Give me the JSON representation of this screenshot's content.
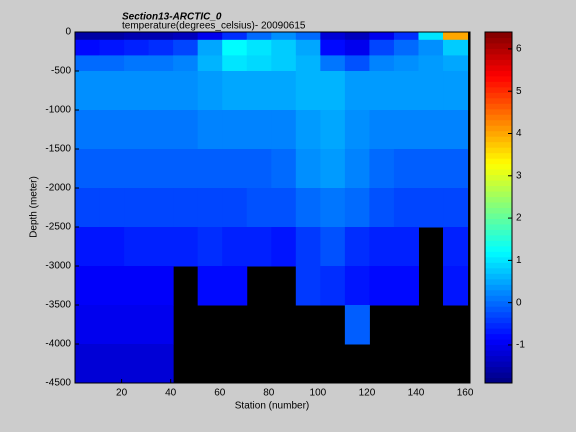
{
  "chart_data": {
    "type": "heatmap",
    "title": "Section13-ARCTIC_0",
    "subtitle": "temperature(degrees_celsius)- 20090615",
    "x_label": "Station (number)",
    "y_label": "Depth (meter)",
    "colormap": "jet",
    "x_edges": [
      1,
      11,
      21,
      31,
      41,
      51,
      61,
      71,
      81,
      91,
      101,
      111,
      121,
      131,
      141,
      151,
      161
    ],
    "y_edges": [
      0,
      -100,
      -300,
      -500,
      -1000,
      -1500,
      -2000,
      -2500,
      -3000,
      -3500,
      -4000,
      -4500
    ],
    "values": [
      [
        -1.6,
        -1.6,
        -1.5,
        -1.5,
        -1.4,
        -1.0,
        -0.5,
        0.0,
        0.3,
        0.0,
        -1.2,
        -1.4,
        -1.0,
        -0.5,
        1.0,
        4.0
      ],
      [
        -0.8,
        -0.7,
        -0.6,
        -0.5,
        -0.3,
        0.5,
        1.2,
        1.0,
        0.8,
        0.5,
        -0.8,
        -1.0,
        -0.3,
        0.0,
        0.3,
        0.8
      ],
      [
        0.0,
        0.0,
        0.1,
        0.1,
        0.2,
        0.6,
        1.0,
        0.9,
        0.8,
        0.6,
        0.1,
        -0.2,
        0.2,
        0.3,
        0.4,
        0.5
      ],
      [
        0.3,
        0.3,
        0.3,
        0.3,
        0.3,
        0.4,
        0.5,
        0.5,
        0.5,
        0.6,
        0.6,
        0.4,
        0.4,
        0.4,
        0.4,
        0.4
      ],
      [
        0.1,
        0.1,
        0.1,
        0.1,
        0.1,
        0.2,
        0.2,
        0.2,
        0.2,
        0.4,
        0.5,
        0.3,
        0.2,
        0.2,
        0.2,
        0.2
      ],
      [
        -0.1,
        -0.1,
        -0.1,
        -0.1,
        -0.1,
        -0.1,
        -0.1,
        -0.1,
        0.0,
        0.3,
        0.4,
        0.2,
        0.0,
        -0.1,
        -0.1,
        -0.1
      ],
      [
        -0.3,
        -0.3,
        -0.3,
        -0.3,
        -0.3,
        -0.3,
        -0.3,
        -0.2,
        -0.2,
        0.0,
        0.1,
        0.0,
        -0.2,
        -0.3,
        -0.3,
        -0.3
      ],
      [
        -0.7,
        -0.7,
        -0.6,
        -0.6,
        -0.6,
        -0.5,
        -0.6,
        -0.6,
        -0.7,
        -0.4,
        -0.2,
        -0.5,
        -0.6,
        -0.6,
        null,
        -0.6
      ],
      [
        -0.9,
        -0.9,
        -0.9,
        -0.9,
        null,
        -0.8,
        -0.8,
        null,
        null,
        -0.4,
        -0.5,
        -0.7,
        -0.8,
        -0.8,
        null,
        -0.7
      ],
      [
        -1.0,
        -1.0,
        -1.0,
        -1.0,
        null,
        null,
        null,
        null,
        null,
        null,
        null,
        -0.1,
        null,
        null,
        null,
        null
      ],
      [
        -1.2,
        -1.2,
        -1.2,
        -1.2,
        null,
        null,
        null,
        null,
        null,
        null,
        null,
        null,
        null,
        null,
        null,
        null
      ]
    ],
    "xlim": [
      1,
      162
    ],
    "ylim": [
      -4500,
      0
    ],
    "clim": [
      -1.9,
      6.4
    ],
    "xticks": [
      20,
      40,
      60,
      80,
      100,
      120,
      140,
      160
    ],
    "yticks": [
      0,
      -500,
      -1000,
      -1500,
      -2000,
      -2500,
      -3000,
      -3500,
      -4000,
      -4500
    ],
    "cticks": [
      -1,
      0,
      1,
      2,
      3,
      4,
      5,
      6
    ]
  }
}
